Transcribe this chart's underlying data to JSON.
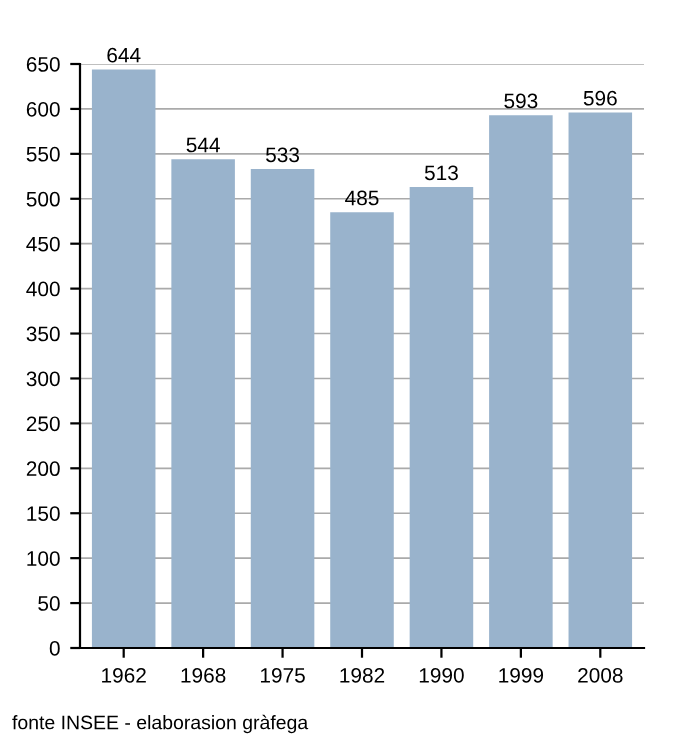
{
  "chart_data": {
    "type": "bar",
    "categories": [
      "1962",
      "1968",
      "1975",
      "1982",
      "1990",
      "1999",
      "2008"
    ],
    "values": [
      644,
      544,
      533,
      485,
      513,
      593,
      596
    ],
    "color": "#99b3cc",
    "data_labels": true,
    "ylim": [
      0,
      650
    ],
    "yticks": [
      0,
      50,
      100,
      150,
      200,
      250,
      300,
      350,
      400,
      450,
      500,
      550,
      600,
      650
    ],
    "grid": "y",
    "annotations": [
      "fonte INSEE - elaborasion gràfega"
    ]
  }
}
